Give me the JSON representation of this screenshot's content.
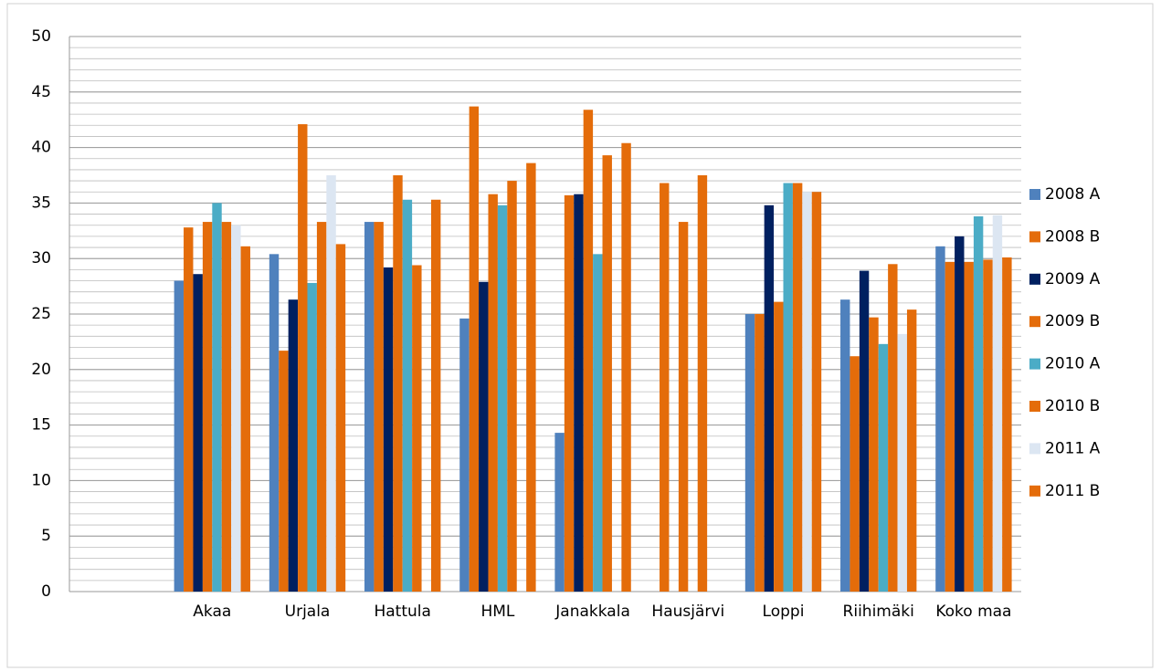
{
  "chart_data": {
    "type": "bar",
    "categories": [
      null,
      "Akaa",
      "Urjala",
      "Hattula",
      "HML",
      "Janakkala",
      "Hausjärvi",
      "Loppi",
      "Riihimäki",
      "Koko maa"
    ],
    "series": [
      {
        "name": "2008 A",
        "color": "#4f81bd",
        "values": [
          null,
          28,
          30.4,
          33.3,
          24.6,
          14.3,
          null,
          25,
          26.3,
          31.1
        ]
      },
      {
        "name": "2008 B",
        "color": "#e46c0a",
        "values": [
          null,
          32.8,
          21.7,
          33.3,
          43.7,
          35.7,
          36.8,
          25,
          21.2,
          29.7
        ]
      },
      {
        "name": "2009 A",
        "color": "#002060",
        "values": [
          null,
          28.6,
          26.3,
          29.2,
          27.9,
          35.8,
          null,
          34.8,
          28.9,
          32.0
        ]
      },
      {
        "name": "2009 B",
        "color": "#e46c0a",
        "values": [
          null,
          33.3,
          42.1,
          37.5,
          35.8,
          43.4,
          33.3,
          26.1,
          24.7,
          29.7
        ]
      },
      {
        "name": "2010 A",
        "color": "#4bacc6",
        "values": [
          null,
          35,
          27.8,
          35.3,
          34.8,
          30.4,
          null,
          36.8,
          22.3,
          33.8
        ]
      },
      {
        "name": "2010 B",
        "color": "#e46c0a",
        "values": [
          null,
          33.3,
          33.3,
          29.4,
          37.0,
          39.3,
          37.5,
          36.8,
          29.5,
          29.9
        ]
      },
      {
        "name": "2011 A",
        "color": "#dce6f2",
        "values": [
          null,
          33,
          37.5,
          null,
          null,
          null,
          null,
          36,
          23.2,
          33.9
        ]
      },
      {
        "name": "2011 B",
        "color": "#e46c0a",
        "values": [
          null,
          31.1,
          31.3,
          35.3,
          38.6,
          40.4,
          null,
          36.0,
          25.4,
          30.1
        ]
      }
    ],
    "ylim": [
      0,
      50
    ],
    "yticks": [
      0,
      5,
      10,
      15,
      20,
      25,
      30,
      35,
      40,
      45,
      50
    ],
    "grid": true,
    "minor_grid_step": 1,
    "legend": "right"
  }
}
